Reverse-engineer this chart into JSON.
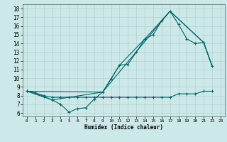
{
  "title": "",
  "xlabel": "Humidex (Indice chaleur)",
  "bg_color": "#cce8e8",
  "line_color": "#006666",
  "grid_color": "#aacccc",
  "xlim": [
    -0.5,
    23.5
  ],
  "ylim": [
    5.6,
    18.5
  ],
  "xticks": [
    0,
    1,
    2,
    3,
    4,
    5,
    6,
    7,
    8,
    9,
    10,
    11,
    12,
    13,
    14,
    15,
    16,
    17,
    18,
    19,
    20,
    21,
    22,
    23
  ],
  "yticks": [
    6,
    7,
    8,
    9,
    10,
    11,
    12,
    13,
    14,
    15,
    16,
    17,
    18
  ],
  "main_x": [
    0,
    1,
    2,
    3,
    4,
    5,
    6,
    7,
    8,
    9,
    10,
    11,
    12,
    13,
    14,
    15,
    16,
    17,
    18,
    19,
    20,
    21,
    22
  ],
  "main_y": [
    8.5,
    8.3,
    7.9,
    7.5,
    7.0,
    6.1,
    6.5,
    6.6,
    7.6,
    8.4,
    9.9,
    11.5,
    11.6,
    13.0,
    14.5,
    15.0,
    16.6,
    17.7,
    16.2,
    14.5,
    14.0,
    14.1,
    11.4
  ],
  "upper_x": [
    0,
    9,
    17,
    21,
    22
  ],
  "upper_y": [
    8.5,
    8.4,
    17.7,
    14.1,
    11.4
  ],
  "mid_x": [
    0,
    3,
    9,
    11,
    14,
    17,
    21,
    22
  ],
  "mid_y": [
    8.5,
    7.5,
    8.4,
    11.5,
    14.5,
    17.7,
    14.1,
    11.4
  ],
  "flat_x": [
    0,
    1,
    2,
    3,
    4,
    5,
    6,
    7,
    8,
    9,
    10,
    11,
    12,
    13,
    14,
    15,
    16,
    17,
    18,
    19,
    20,
    21,
    22
  ],
  "flat_y": [
    8.5,
    8.3,
    8.0,
    7.8,
    7.8,
    7.8,
    7.8,
    7.8,
    7.8,
    7.8,
    7.8,
    7.8,
    7.8,
    7.8,
    7.8,
    7.8,
    7.8,
    7.8,
    8.2,
    8.2,
    8.2,
    8.5,
    8.5
  ]
}
